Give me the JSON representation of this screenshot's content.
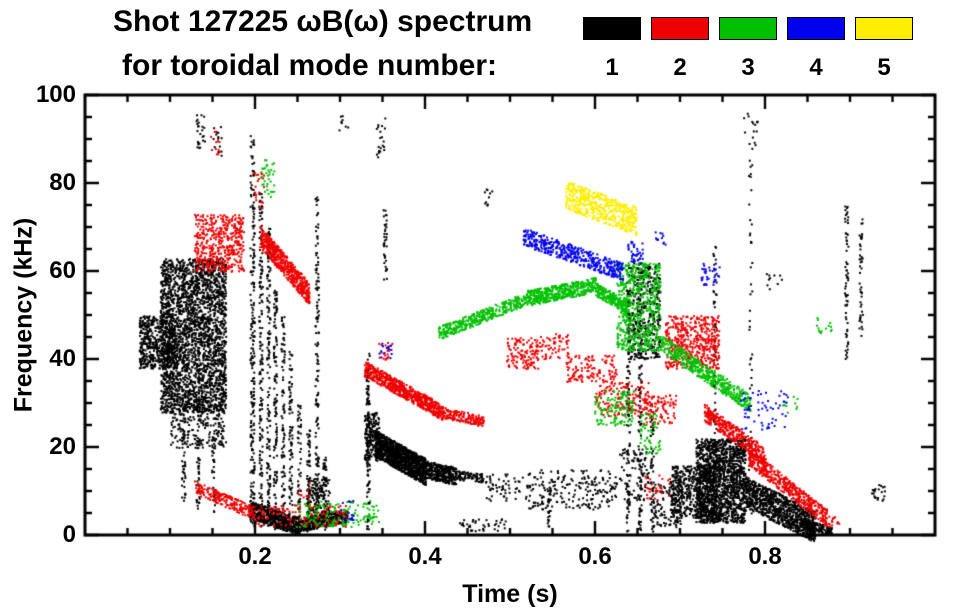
{
  "header": {
    "title": "Shot 127225 ωB(ω) spectrum",
    "subtitle": "for toroidal mode number:"
  },
  "chart_data": {
    "type": "scatter",
    "title": "Shot 127225 ωB(ω) spectrum",
    "subtitle": "for toroidal mode number: 1 2 3 4 5",
    "xlabel": "Time (s)",
    "ylabel": "Frequency (kHz)",
    "xlim": [
      0,
      1.0
    ],
    "ylim": [
      0,
      100
    ],
    "grid": false,
    "legend_position": "top-right",
    "xticks": [
      {
        "v": 0.2,
        "label": "0.2"
      },
      {
        "v": 0.4,
        "label": "0.4"
      },
      {
        "v": 0.6,
        "label": "0.6"
      },
      {
        "v": 0.8,
        "label": "0.8"
      }
    ],
    "yticks": [
      {
        "v": 0,
        "label": "0"
      },
      {
        "v": 20,
        "label": "20"
      },
      {
        "v": 40,
        "label": "40"
      },
      {
        "v": 60,
        "label": "60"
      },
      {
        "v": 80,
        "label": "80"
      },
      {
        "v": 100,
        "label": "100"
      }
    ],
    "xtick_minor_step": 0.05,
    "ytick_minor_step": 5,
    "series": [
      {
        "name": "1",
        "color": "#000000"
      },
      {
        "name": "2",
        "color": "#ee0000"
      },
      {
        "name": "3",
        "color": "#00c000"
      },
      {
        "name": "4",
        "color": "#0000ee"
      },
      {
        "name": "5",
        "color": "#ffee00"
      }
    ],
    "clusters": [
      {
        "m": 1,
        "type": "blob",
        "t0": 0.063,
        "t1": 0.105,
        "f0": 38,
        "f1": 50,
        "n": 500
      },
      {
        "m": 1,
        "type": "blob",
        "t0": 0.088,
        "t1": 0.165,
        "f0": 28,
        "f1": 63,
        "n": 2600
      },
      {
        "m": 1,
        "type": "blob",
        "t0": 0.1,
        "t1": 0.165,
        "f0": 20,
        "f1": 30,
        "n": 220
      },
      {
        "m": 1,
        "type": "vline",
        "t0": 0.115,
        "f0": 8,
        "f1": 30,
        "n": 50,
        "w": 0.004
      },
      {
        "m": 1,
        "type": "vline",
        "t0": 0.132,
        "f0": 6,
        "f1": 28,
        "n": 45,
        "w": 0.004
      },
      {
        "m": 1,
        "type": "vline",
        "t0": 0.15,
        "f0": 5,
        "f1": 24,
        "n": 35,
        "w": 0.004
      },
      {
        "m": 1,
        "type": "blob",
        "t0": 0.13,
        "t1": 0.141,
        "f0": 88,
        "f1": 96,
        "n": 25
      },
      {
        "m": 1,
        "type": "blob",
        "t0": 0.15,
        "t1": 0.161,
        "f0": 86,
        "f1": 93,
        "n": 14
      },
      {
        "m": 1,
        "type": "vline",
        "t0": 0.196,
        "f0": 2,
        "f1": 91,
        "n": 230,
        "w": 0.005
      },
      {
        "m": 1,
        "type": "vline",
        "t0": 0.206,
        "f0": 2,
        "f1": 78,
        "n": 170,
        "w": 0.004
      },
      {
        "m": 1,
        "type": "vline",
        "t0": 0.215,
        "f0": 2,
        "f1": 70,
        "n": 150,
        "w": 0.004
      },
      {
        "m": 1,
        "type": "vline",
        "t0": 0.223,
        "f0": 1,
        "f1": 56,
        "n": 120,
        "w": 0.004
      },
      {
        "m": 1,
        "type": "vline",
        "t0": 0.232,
        "f0": 1,
        "f1": 50,
        "n": 100,
        "w": 0.004
      },
      {
        "m": 1,
        "type": "vline",
        "t0": 0.241,
        "f0": 1,
        "f1": 42,
        "n": 85,
        "w": 0.004
      },
      {
        "m": 1,
        "type": "vline",
        "t0": 0.251,
        "f0": 1,
        "f1": 30,
        "n": 60,
        "w": 0.004
      },
      {
        "m": 1,
        "type": "vline",
        "t0": 0.262,
        "f0": 1,
        "f1": 24,
        "n": 50,
        "w": 0.004
      },
      {
        "m": 1,
        "type": "vline",
        "t0": 0.272,
        "f0": 1,
        "f1": 77,
        "n": 150,
        "w": 0.004
      },
      {
        "m": 1,
        "type": "vline",
        "t0": 0.281,
        "f0": 1,
        "f1": 18,
        "n": 40,
        "w": 0.004
      },
      {
        "m": 1,
        "type": "band",
        "t0": 0.193,
        "t1": 0.252,
        "f0": 6,
        "f1": 2,
        "th": 4,
        "n": 520
      },
      {
        "m": 1,
        "type": "band",
        "t0": 0.252,
        "t1": 0.308,
        "f0": 2.5,
        "f1": 4.5,
        "th": 3,
        "n": 330
      },
      {
        "m": 1,
        "type": "blob",
        "t0": 0.26,
        "t1": 0.287,
        "f0": 3,
        "f1": 13,
        "n": 180
      },
      {
        "m": 1,
        "type": "vline",
        "t0": 0.332,
        "f0": 1,
        "f1": 42,
        "n": 110,
        "w": 0.004
      },
      {
        "m": 1,
        "type": "blob",
        "t0": 0.328,
        "t1": 0.346,
        "f0": 17,
        "f1": 28,
        "n": 170
      },
      {
        "m": 1,
        "type": "band",
        "t0": 0.34,
        "t1": 0.4,
        "f0": 21,
        "f1": 14.5,
        "th": 6,
        "n": 1250
      },
      {
        "m": 1,
        "type": "band",
        "t0": 0.4,
        "t1": 0.436,
        "f0": 15,
        "f1": 13.5,
        "th": 4,
        "n": 330
      },
      {
        "m": 1,
        "type": "band",
        "t0": 0.436,
        "t1": 0.468,
        "f0": 13.8,
        "f1": 13,
        "th": 2,
        "n": 80
      },
      {
        "m": 1,
        "type": "blob",
        "t0": 0.342,
        "t1": 0.353,
        "f0": 86,
        "f1": 95,
        "n": 20
      },
      {
        "m": 1,
        "type": "blob",
        "t0": 0.298,
        "t1": 0.31,
        "f0": 92,
        "f1": 96,
        "n": 8
      },
      {
        "m": 1,
        "type": "vline",
        "t0": 0.352,
        "f0": 58,
        "f1": 76,
        "n": 36,
        "w": 0.004
      },
      {
        "m": 1,
        "type": "blob",
        "t0": 0.44,
        "t1": 0.5,
        "f0": 1,
        "f1": 4,
        "n": 40
      },
      {
        "m": 1,
        "type": "blob",
        "t0": 0.468,
        "t1": 0.478,
        "f0": 75,
        "f1": 79,
        "n": 10
      },
      {
        "m": 1,
        "type": "blob",
        "t0": 0.47,
        "t1": 0.52,
        "f0": 8,
        "f1": 14,
        "n": 60
      },
      {
        "m": 1,
        "type": "blob",
        "t0": 0.52,
        "t1": 0.625,
        "f0": 6,
        "f1": 15,
        "n": 210
      },
      {
        "m": 1,
        "type": "vline",
        "t0": 0.545,
        "f0": 2,
        "f1": 12,
        "n": 25,
        "w": 0.004
      },
      {
        "m": 1,
        "type": "vline",
        "t0": 0.638,
        "f0": 1,
        "f1": 58,
        "n": 110,
        "w": 0.004
      },
      {
        "m": 1,
        "type": "vline",
        "t0": 0.652,
        "f0": 1,
        "f1": 62,
        "n": 120,
        "w": 0.004
      },
      {
        "m": 1,
        "type": "blob",
        "t0": 0.638,
        "t1": 0.676,
        "f0": 40,
        "f1": 62,
        "n": 380
      },
      {
        "m": 1,
        "type": "blob",
        "t0": 0.628,
        "t1": 0.662,
        "f0": 8,
        "f1": 20,
        "n": 90
      },
      {
        "m": 1,
        "type": "vline",
        "t0": 0.666,
        "f0": 1,
        "f1": 30,
        "n": 45,
        "w": 0.004
      },
      {
        "m": 1,
        "type": "blob",
        "t0": 0.664,
        "t1": 0.7,
        "f0": 2,
        "f1": 12,
        "n": 130
      },
      {
        "m": 1,
        "type": "blob",
        "t0": 0.688,
        "t1": 0.742,
        "f0": 4,
        "f1": 16,
        "n": 520
      },
      {
        "m": 1,
        "type": "blob",
        "t0": 0.718,
        "t1": 0.776,
        "f0": 3,
        "f1": 22,
        "n": 1500
      },
      {
        "m": 1,
        "type": "band",
        "t0": 0.776,
        "t1": 0.858,
        "f0": 10,
        "f1": 2,
        "th": 7,
        "n": 950
      },
      {
        "m": 1,
        "type": "band",
        "t0": 0.84,
        "t1": 0.878,
        "f0": 3,
        "f1": 1,
        "th": 2,
        "n": 140
      },
      {
        "m": 1,
        "type": "vline",
        "t0": 0.74,
        "f0": 2,
        "f1": 68,
        "n": 80,
        "w": 0.004
      },
      {
        "m": 1,
        "type": "vline",
        "t0": 0.782,
        "f0": 5,
        "f1": 88,
        "n": 55,
        "w": 0.004
      },
      {
        "m": 1,
        "type": "blob",
        "t0": 0.774,
        "t1": 0.79,
        "f0": 88,
        "f1": 96,
        "n": 16
      },
      {
        "m": 1,
        "type": "blob",
        "t0": 0.8,
        "t1": 0.82,
        "f0": 55,
        "f1": 60,
        "n": 10
      },
      {
        "m": 1,
        "type": "vline",
        "t0": 0.895,
        "f0": 40,
        "f1": 75,
        "n": 65,
        "w": 0.004
      },
      {
        "m": 1,
        "type": "vline",
        "t0": 0.912,
        "f0": 45,
        "f1": 72,
        "n": 45,
        "w": 0.004
      },
      {
        "m": 1,
        "type": "blob",
        "t0": 0.924,
        "t1": 0.94,
        "f0": 8,
        "f1": 12,
        "n": 22
      },
      {
        "m": 2,
        "type": "blob",
        "t0": 0.128,
        "t1": 0.186,
        "f0": 60,
        "f1": 73,
        "n": 460
      },
      {
        "m": 2,
        "type": "blob",
        "t0": 0.147,
        "t1": 0.158,
        "f0": 86,
        "f1": 92,
        "n": 12
      },
      {
        "m": 2,
        "type": "band",
        "t0": 0.205,
        "t1": 0.263,
        "f0": 68,
        "f1": 55,
        "th": 5,
        "n": 560
      },
      {
        "m": 2,
        "type": "blob",
        "t0": 0.197,
        "t1": 0.213,
        "f0": 74,
        "f1": 84,
        "n": 22
      },
      {
        "m": 2,
        "type": "band",
        "t0": 0.128,
        "t1": 0.2,
        "f0": 11,
        "f1": 5,
        "th": 3,
        "n": 210
      },
      {
        "m": 2,
        "type": "blob",
        "t0": 0.2,
        "t1": 0.31,
        "f0": 2,
        "f1": 7,
        "n": 140
      },
      {
        "m": 2,
        "type": "band",
        "t0": 0.328,
        "t1": 0.42,
        "f0": 38,
        "f1": 28,
        "th": 3.5,
        "n": 660
      },
      {
        "m": 2,
        "type": "band",
        "t0": 0.42,
        "t1": 0.468,
        "f0": 28,
        "f1": 26,
        "th": 2.5,
        "n": 150
      },
      {
        "m": 2,
        "type": "blob",
        "t0": 0.344,
        "t1": 0.362,
        "f0": 40,
        "f1": 44,
        "n": 20
      },
      {
        "m": 2,
        "type": "blob",
        "t0": 0.495,
        "t1": 0.535,
        "f0": 38,
        "f1": 45,
        "n": 130
      },
      {
        "m": 2,
        "type": "blob",
        "t0": 0.535,
        "t1": 0.568,
        "f0": 40,
        "f1": 46,
        "n": 60
      },
      {
        "m": 2,
        "type": "blob",
        "t0": 0.565,
        "t1": 0.625,
        "f0": 35,
        "f1": 41,
        "n": 130
      },
      {
        "m": 2,
        "type": "blob",
        "t0": 0.6,
        "t1": 0.662,
        "f0": 27,
        "f1": 35,
        "n": 150
      },
      {
        "m": 2,
        "type": "blob",
        "t0": 0.655,
        "t1": 0.695,
        "f0": 25,
        "f1": 32,
        "n": 100
      },
      {
        "m": 2,
        "type": "blob",
        "t0": 0.658,
        "t1": 0.69,
        "f0": 8,
        "f1": 14,
        "n": 30
      },
      {
        "m": 2,
        "type": "blob",
        "t0": 0.682,
        "t1": 0.745,
        "f0": 38,
        "f1": 50,
        "n": 470
      },
      {
        "m": 2,
        "type": "band",
        "t0": 0.728,
        "t1": 0.8,
        "f0": 28,
        "f1": 18,
        "th": 4,
        "n": 360
      },
      {
        "m": 2,
        "type": "band",
        "t0": 0.78,
        "t1": 0.872,
        "f0": 18,
        "f1": 4,
        "th": 4,
        "n": 470
      },
      {
        "m": 2,
        "type": "blob",
        "t0": 0.873,
        "t1": 0.888,
        "f0": 2,
        "f1": 5,
        "n": 15
      },
      {
        "m": 2,
        "type": "blob",
        "t0": 0.25,
        "t1": 0.263,
        "f0": 8,
        "f1": 12,
        "n": 10
      },
      {
        "m": 3,
        "type": "blob",
        "t0": 0.205,
        "t1": 0.222,
        "f0": 77,
        "f1": 86,
        "n": 35
      },
      {
        "m": 3,
        "type": "blob",
        "t0": 0.248,
        "t1": 0.345,
        "f0": 2,
        "f1": 8,
        "n": 150
      },
      {
        "m": 3,
        "type": "band",
        "t0": 0.415,
        "t1": 0.52,
        "f0": 46,
        "f1": 54,
        "th": 3,
        "n": 380
      },
      {
        "m": 3,
        "type": "band",
        "t0": 0.52,
        "t1": 0.6,
        "f0": 54,
        "f1": 57,
        "th": 3.5,
        "n": 430
      },
      {
        "m": 3,
        "type": "band",
        "t0": 0.6,
        "t1": 0.636,
        "f0": 56,
        "f1": 52,
        "th": 3,
        "n": 200
      },
      {
        "m": 3,
        "type": "blob",
        "t0": 0.625,
        "t1": 0.676,
        "f0": 42,
        "f1": 62,
        "n": 560
      },
      {
        "m": 3,
        "type": "band",
        "t0": 0.676,
        "t1": 0.782,
        "f0": 44,
        "f1": 30,
        "th": 4,
        "n": 460
      },
      {
        "m": 3,
        "type": "blob",
        "t0": 0.598,
        "t1": 0.645,
        "f0": 25,
        "f1": 33,
        "n": 120
      },
      {
        "m": 3,
        "type": "blob",
        "t0": 0.652,
        "t1": 0.676,
        "f0": 18,
        "f1": 28,
        "n": 55
      },
      {
        "m": 3,
        "type": "blob",
        "t0": 0.858,
        "t1": 0.878,
        "f0": 46,
        "f1": 50,
        "n": 14
      },
      {
        "m": 3,
        "type": "blob",
        "t0": 0.818,
        "t1": 0.838,
        "f0": 28,
        "f1": 32,
        "n": 10
      },
      {
        "m": 4,
        "type": "band",
        "t0": 0.515,
        "t1": 0.632,
        "f0": 68,
        "f1": 60,
        "th": 4,
        "n": 430
      },
      {
        "m": 4,
        "type": "blob",
        "t0": 0.638,
        "t1": 0.656,
        "f0": 62,
        "f1": 67,
        "n": 40
      },
      {
        "m": 4,
        "type": "blob",
        "t0": 0.668,
        "t1": 0.682,
        "f0": 66,
        "f1": 69,
        "n": 12
      },
      {
        "m": 4,
        "type": "blob",
        "t0": 0.724,
        "t1": 0.746,
        "f0": 57,
        "f1": 62,
        "n": 35
      },
      {
        "m": 4,
        "type": "blob",
        "t0": 0.768,
        "t1": 0.826,
        "f0": 24,
        "f1": 33,
        "n": 60
      },
      {
        "m": 4,
        "type": "blob",
        "t0": 0.344,
        "t1": 0.36,
        "f0": 40,
        "f1": 44,
        "n": 14
      },
      {
        "m": 4,
        "type": "blob",
        "t0": 0.3,
        "t1": 0.316,
        "f0": 3,
        "f1": 8,
        "n": 14
      },
      {
        "m": 5,
        "type": "band",
        "t0": 0.565,
        "t1": 0.648,
        "f0": 77.5,
        "f1": 71.5,
        "th": 6.5,
        "n": 520
      }
    ]
  }
}
